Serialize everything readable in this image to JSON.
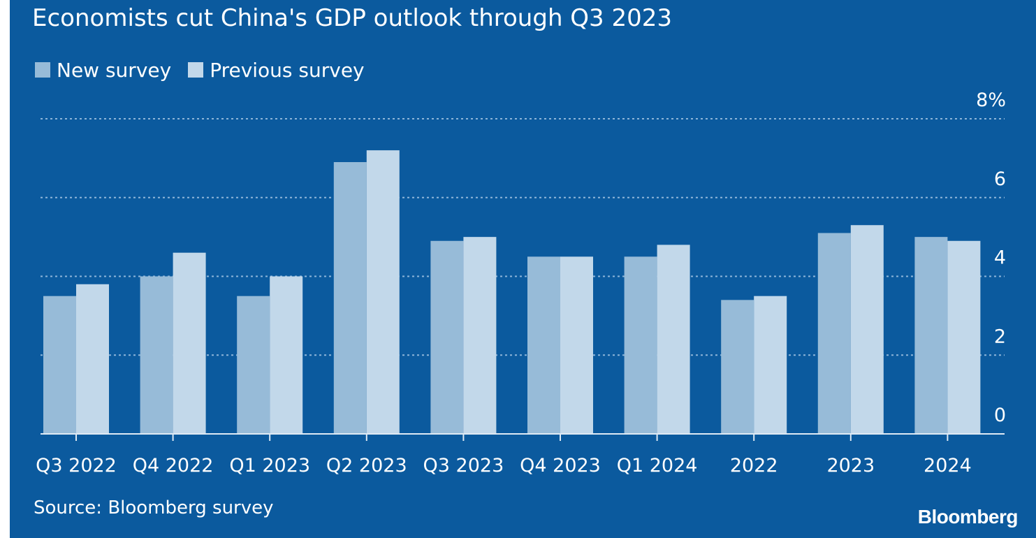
{
  "chart_data": {
    "type": "bar",
    "title": "Economists cut China's GDP outlook through Q3 2023",
    "categories": [
      "Q3 2022",
      "Q4 2022",
      "Q1 2023",
      "Q2 2023",
      "Q3 2023",
      "Q4 2023",
      "Q1 2024",
      "2022",
      "2023",
      "2024"
    ],
    "series": [
      {
        "name": "New survey",
        "values": [
          3.5,
          4.0,
          3.5,
          6.9,
          4.9,
          4.5,
          4.5,
          3.4,
          5.1,
          5.0
        ]
      },
      {
        "name": "Previous survey",
        "values": [
          3.8,
          4.6,
          4.0,
          7.2,
          5.0,
          4.5,
          4.8,
          3.5,
          5.3,
          4.9
        ]
      }
    ],
    "ylim": [
      0,
      8
    ],
    "yticks": [
      0,
      2,
      4,
      6,
      8
    ],
    "ytick_labels": [
      "0",
      "2",
      "4",
      "6",
      "8%"
    ],
    "grid": true,
    "legend_position": "top-left",
    "axis_side": "right",
    "colors": {
      "background": "#0b5a9e",
      "new_survey": "#97bbd8",
      "previous_survey": "#c2d8ea",
      "text": "#ffffff",
      "gridline": "#8fb6d9"
    }
  },
  "source": "Source: Bloomberg survey",
  "logo": "Bloomberg"
}
